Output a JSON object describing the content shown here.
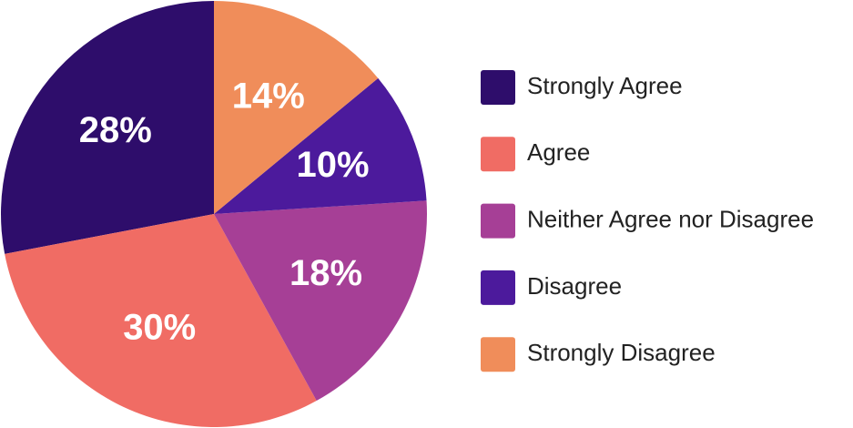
{
  "chart_data": {
    "type": "pie",
    "categories": [
      "Strongly Agree",
      "Agree",
      "Neither Agree nor Disagree",
      "Disagree",
      "Strongly Disagree"
    ],
    "values": [
      28,
      30,
      18,
      10,
      14
    ],
    "value_labels": [
      "28%",
      "30%",
      "18%",
      "10%",
      "14%"
    ],
    "colors": [
      "#2e0d6b",
      "#f06c64",
      "#a63f96",
      "#4c1a9c",
      "#f08d5a"
    ],
    "legend": "right"
  }
}
